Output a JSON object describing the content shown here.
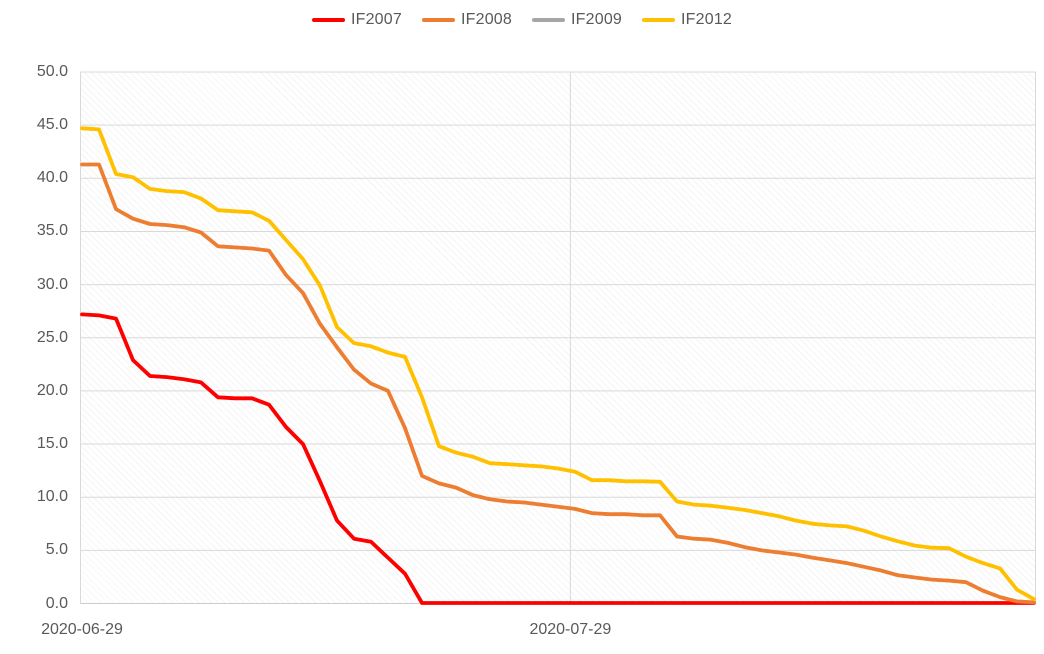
{
  "chart_data": {
    "type": "line",
    "title": "",
    "legend_position": "top-center",
    "grid": true,
    "x_axis": {
      "ticks": [
        {
          "label": "2020-06-29",
          "position_frac": 0.0,
          "gridline": false
        },
        {
          "label": "2020-07-29",
          "position_frac": 0.513,
          "gridline": true
        }
      ]
    },
    "y_axis": {
      "min": 0,
      "max": 50,
      "step": 5,
      "tick_labels": [
        "0.0",
        "5.0",
        "10.0",
        "15.0",
        "20.0",
        "25.0",
        "30.0",
        "35.0",
        "40.0",
        "45.0",
        "50.0"
      ]
    },
    "series": [
      {
        "name": "IF2007",
        "color": "#FE0000",
        "values": [
          27.2,
          27.1,
          26.8,
          22.9,
          21.4,
          21.3,
          21.1,
          20.8,
          19.4,
          19.3,
          19.3,
          18.7,
          16.6,
          15.0,
          11.5,
          7.8,
          6.1,
          5.8,
          4.3,
          2.8,
          0.05,
          0.05,
          0.05,
          0.05,
          0.05,
          0.05,
          0.05,
          0.05,
          0.05,
          0.05,
          0.05,
          0.05,
          0.05,
          0.05,
          0.05,
          0.05,
          0.05,
          0.05,
          0.05,
          0.05,
          0.05,
          0.05,
          0.05,
          0.05,
          0.05,
          0.05,
          0.05,
          0.05,
          0.05,
          0.05,
          0.05,
          0.05,
          0.05,
          0.05,
          0.05,
          0.05,
          0.05
        ]
      },
      {
        "name": "IF2008",
        "color": "#ED7D31",
        "values": [
          41.3,
          41.3,
          37.1,
          36.2,
          35.7,
          35.6,
          35.4,
          34.9,
          33.6,
          33.5,
          33.4,
          33.2,
          30.9,
          29.2,
          26.3,
          24.1,
          22.0,
          20.7,
          20.0,
          16.5,
          12.0,
          11.3,
          10.9,
          10.2,
          9.8,
          9.6,
          9.5,
          9.3,
          9.1,
          8.9,
          8.5,
          8.4,
          8.4,
          8.3,
          8.3,
          6.3,
          6.1,
          6.0,
          5.7,
          5.3,
          5.0,
          4.8,
          4.6,
          4.3,
          4.05,
          3.8,
          3.45,
          3.1,
          2.65,
          2.45,
          2.25,
          2.15,
          2.0,
          1.2,
          0.6,
          0.2,
          0.1
        ]
      },
      {
        "name": "IF2009",
        "color": "#A6A6A6",
        "values": []
      },
      {
        "name": "IF2012",
        "color": "#FFC000",
        "values": [
          44.7,
          44.6,
          40.4,
          40.1,
          39.0,
          38.8,
          38.7,
          38.1,
          37.0,
          36.9,
          36.8,
          36.0,
          34.2,
          32.4,
          29.9,
          26.0,
          24.5,
          24.2,
          23.6,
          23.2,
          19.4,
          14.8,
          14.2,
          13.8,
          13.2,
          13.1,
          13.0,
          12.9,
          12.7,
          12.4,
          11.6,
          11.6,
          11.5,
          11.5,
          11.45,
          9.6,
          9.3,
          9.2,
          9.0,
          8.8,
          8.5,
          8.2,
          7.8,
          7.5,
          7.35,
          7.25,
          6.85,
          6.3,
          5.85,
          5.45,
          5.25,
          5.2,
          4.4,
          3.8,
          3.3,
          1.3,
          0.4
        ]
      }
    ]
  },
  "ui": {
    "background": "#FFFFFF",
    "gridline_color": "#D9D9D9",
    "axis_line_color": "#CCCCCC",
    "label_color": "#595959",
    "hatch_color": "#ECECEC"
  }
}
